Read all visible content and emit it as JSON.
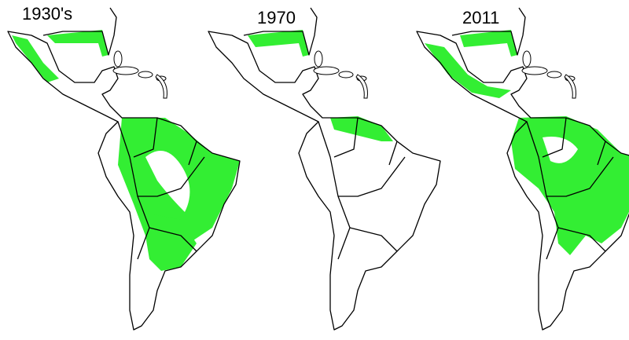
{
  "maps": [
    {
      "title": "1930's"
    },
    {
      "title": "1970"
    },
    {
      "title": "2011"
    }
  ]
}
